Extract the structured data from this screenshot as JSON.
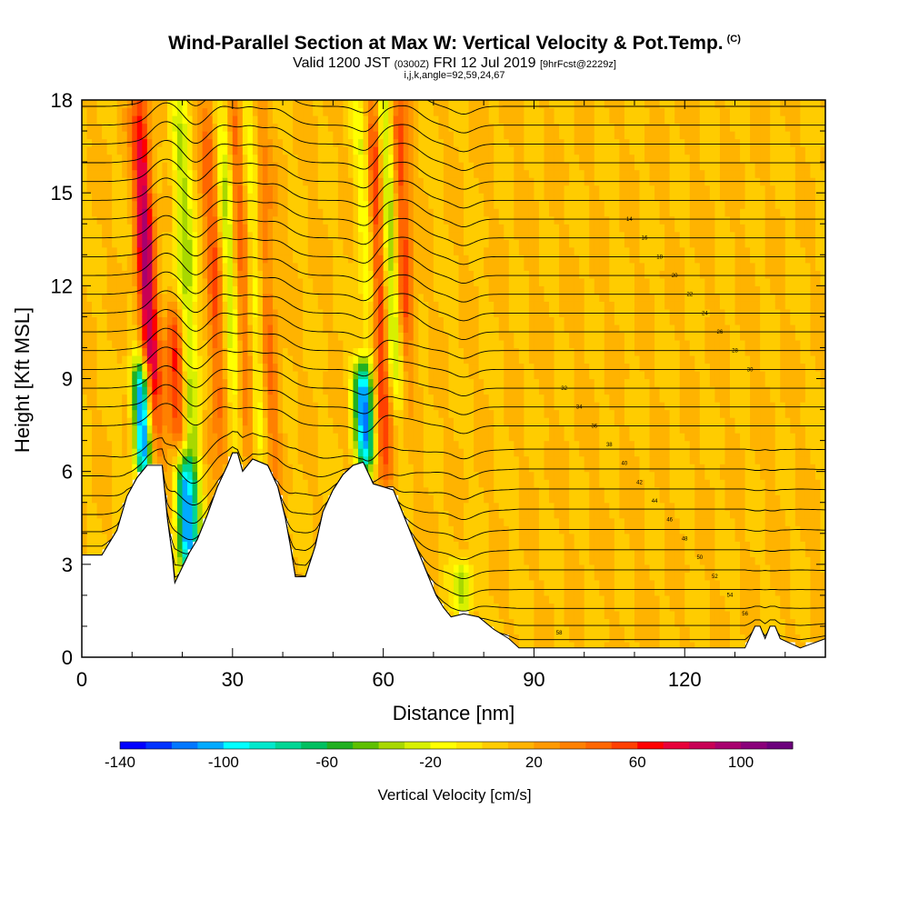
{
  "header": {
    "title": "Wind-Parallel Section at Max W: Vertical Velocity & Pot.Temp.",
    "copyright": "(C)",
    "valid_prefix": "Valid 1200 JST",
    "valid_utc": "(0300Z)",
    "valid_date": "FRI 12 Jul 2019",
    "forecast_info": "[9hrFcst@2229z]",
    "grid_info": "i,j,k,angle=92,59,24,67"
  },
  "chart_data": {
    "type": "heatmap",
    "xlabel": "Distance [nm]",
    "ylabel": "Height [Kft MSL]",
    "xlim": [
      0,
      148
    ],
    "ylim": [
      0,
      18
    ],
    "x_ticks": [
      0,
      30,
      60,
      90,
      120
    ],
    "y_ticks": [
      0,
      3,
      6,
      9,
      12,
      15,
      18
    ],
    "x_tick_labels": [
      "0",
      "30",
      "60",
      "90",
      "120"
    ],
    "y_tick_labels": [
      "0",
      "3",
      "6",
      "9",
      "12",
      "15",
      "18"
    ],
    "colorbar": {
      "label": "Vertical Velocity [cm/s]",
      "range": [
        -140,
        120
      ],
      "step": 10,
      "tick_values": [
        -140,
        -100,
        -60,
        -20,
        20,
        60,
        100
      ],
      "tick_labels": [
        "-140",
        "-100",
        "-60",
        "-20",
        "20",
        "60",
        "100"
      ],
      "colors": [
        "#0000ff",
        "#0033ff",
        "#0077ff",
        "#00aaff",
        "#00ffff",
        "#00e8cc",
        "#00d694",
        "#00c060",
        "#22b022",
        "#5ec000",
        "#a8d800",
        "#d8f000",
        "#ffff00",
        "#ffe600",
        "#ffcc00",
        "#ffb300",
        "#ff9900",
        "#ff8000",
        "#ff6600",
        "#ff4000",
        "#ff0000",
        "#e8003a",
        "#c80055",
        "#a8006e",
        "#8a007a",
        "#6c007c"
      ]
    },
    "background_value_cm_s": 10,
    "updrafts": [
      {
        "x": 14.5,
        "bottom_kft": 6,
        "top_kft": 18,
        "peak_cm_s": 90
      },
      {
        "x": 19.5,
        "bottom_kft": 7,
        "top_kft": 11,
        "peak_cm_s": 70
      },
      {
        "x": 28,
        "bottom_kft": 6,
        "top_kft": 18,
        "peak_cm_s": 50
      },
      {
        "x": 33,
        "bottom_kft": 6.5,
        "top_kft": 18,
        "peak_cm_s": 60
      },
      {
        "x": 38,
        "bottom_kft": 6,
        "top_kft": 18,
        "peak_cm_s": 50
      },
      {
        "x": 60.5,
        "bottom_kft": 6.5,
        "top_kft": 18,
        "peak_cm_s": 80
      },
      {
        "x": 64.5,
        "bottom_kft": 10,
        "top_kft": 18,
        "peak_cm_s": 70
      }
    ],
    "downdrafts": [
      {
        "x": 12.5,
        "bottom_kft": 6.2,
        "top_kft": 9,
        "peak_cm_s": -130
      },
      {
        "x": 21,
        "bottom_kft": 3,
        "top_kft": 6,
        "peak_cm_s": -100
      },
      {
        "x": 23,
        "bottom_kft": 3,
        "top_kft": 18,
        "peak_cm_s": -40
      },
      {
        "x": 31,
        "bottom_kft": 6.5,
        "top_kft": 18,
        "peak_cm_s": -40
      },
      {
        "x": 36,
        "bottom_kft": 6.5,
        "top_kft": 18,
        "peak_cm_s": -30
      },
      {
        "x": 56.5,
        "bottom_kft": 6.5,
        "top_kft": 9,
        "peak_cm_s": -110
      },
      {
        "x": 58,
        "bottom_kft": 9,
        "top_kft": 18,
        "peak_cm_s": -30
      },
      {
        "x": 62.5,
        "bottom_kft": 9,
        "top_kft": 18,
        "peak_cm_s": -60
      },
      {
        "x": 76,
        "bottom_kft": 1.8,
        "top_kft": 2.5,
        "peak_cm_s": -40
      }
    ],
    "terrain_kft": [
      [
        0,
        3.3
      ],
      [
        4,
        3.3
      ],
      [
        7,
        4.1
      ],
      [
        9,
        5.2
      ],
      [
        11,
        5.8
      ],
      [
        13,
        6.2
      ],
      [
        16,
        6.2
      ],
      [
        17,
        4.5
      ],
      [
        18,
        3.3
      ],
      [
        18.5,
        2.4
      ],
      [
        20,
        2.9
      ],
      [
        21.5,
        3.4
      ],
      [
        23,
        3.8
      ],
      [
        25,
        4.6
      ],
      [
        27,
        5.5
      ],
      [
        29,
        6.2
      ],
      [
        30,
        6.6
      ],
      [
        31,
        6.6
      ],
      [
        32,
        6.0
      ],
      [
        34,
        6.4
      ],
      [
        37,
        6.2
      ],
      [
        39,
        5.5
      ],
      [
        40.5,
        4.5
      ],
      [
        41.5,
        3.6
      ],
      [
        42.5,
        2.6
      ],
      [
        44.5,
        2.6
      ],
      [
        46.5,
        3.6
      ],
      [
        48,
        4.7
      ],
      [
        50,
        5.4
      ],
      [
        52,
        5.9
      ],
      [
        54,
        6.2
      ],
      [
        56,
        6.3
      ],
      [
        58,
        5.6
      ],
      [
        60,
        5.5
      ],
      [
        62,
        5.4
      ],
      [
        63.5,
        4.8
      ],
      [
        65,
        4.2
      ],
      [
        67,
        3.4
      ],
      [
        69,
        2.6
      ],
      [
        70.5,
        2.0
      ],
      [
        72,
        1.6
      ],
      [
        73.5,
        1.3
      ],
      [
        76,
        1.4
      ],
      [
        79,
        1.3
      ],
      [
        82,
        0.9
      ],
      [
        85,
        0.6
      ],
      [
        87,
        0.3
      ],
      [
        120,
        0.3
      ],
      [
        132,
        0.3
      ],
      [
        134,
        1.0
      ],
      [
        135,
        1.0
      ],
      [
        136,
        0.6
      ],
      [
        137,
        1.0
      ],
      [
        138,
        1.0
      ],
      [
        139,
        0.6
      ],
      [
        143,
        0.3
      ],
      [
        148,
        0.6
      ]
    ],
    "theta_contours": {
      "count": 30,
      "label_values": [
        "14",
        "16",
        "18",
        "20",
        "22",
        "24",
        "26",
        "28",
        "30",
        "32",
        "34",
        "36",
        "38",
        "40",
        "42",
        "44",
        "46",
        "48",
        "50",
        "52",
        "54",
        "56",
        "58"
      ]
    }
  }
}
